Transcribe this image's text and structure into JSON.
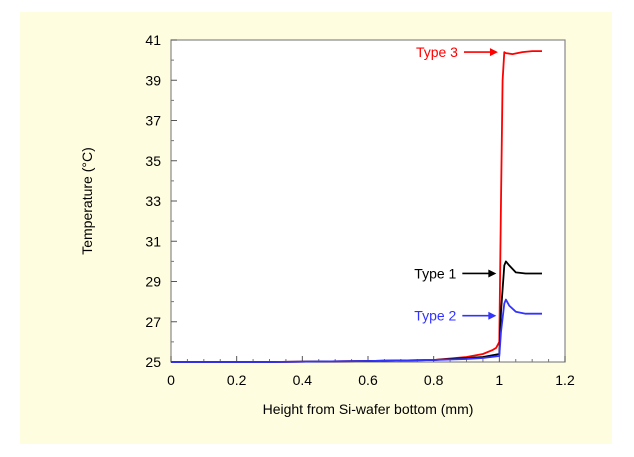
{
  "chart_data": {
    "type": "line",
    "title": "",
    "xlabel": "Height from Si-wafer bottom (mm)",
    "ylabel": "Temperature (°C)",
    "xlim": [
      0,
      1.2
    ],
    "ylim": [
      25,
      41
    ],
    "xticks": [
      0,
      0.2,
      0.4,
      0.6,
      0.8,
      1,
      1.2
    ],
    "yticks": [
      25,
      27,
      29,
      31,
      33,
      35,
      37,
      39,
      41
    ],
    "grid": false,
    "legend": "inline labels with arrows",
    "series": [
      {
        "name": "Type 3",
        "color": "#ff0000",
        "points": [
          [
            0,
            25.0
          ],
          [
            0.3,
            25.0
          ],
          [
            0.6,
            25.05
          ],
          [
            0.8,
            25.1
          ],
          [
            0.9,
            25.25
          ],
          [
            0.95,
            25.4
          ],
          [
            0.98,
            25.6
          ],
          [
            0.99,
            25.7
          ],
          [
            1.0,
            26.0
          ],
          [
            1.005,
            33.0
          ],
          [
            1.01,
            39.0
          ],
          [
            1.015,
            40.4
          ],
          [
            1.02,
            40.35
          ],
          [
            1.04,
            40.3
          ],
          [
            1.07,
            40.4
          ],
          [
            1.1,
            40.45
          ],
          [
            1.13,
            40.45
          ]
        ]
      },
      {
        "name": "Type 1",
        "color": "#000000",
        "points": [
          [
            0,
            25.0
          ],
          [
            0.3,
            25.0
          ],
          [
            0.6,
            25.05
          ],
          [
            0.8,
            25.1
          ],
          [
            0.9,
            25.2
          ],
          [
            0.95,
            25.25
          ],
          [
            1.0,
            25.4
          ],
          [
            1.005,
            27.5
          ],
          [
            1.015,
            29.8
          ],
          [
            1.02,
            30.0
          ],
          [
            1.03,
            29.8
          ],
          [
            1.05,
            29.45
          ],
          [
            1.08,
            29.4
          ],
          [
            1.13,
            29.4
          ]
        ]
      },
      {
        "name": "Type 2",
        "color": "#3333ff",
        "points": [
          [
            0,
            25.0
          ],
          [
            0.3,
            25.0
          ],
          [
            0.6,
            25.05
          ],
          [
            0.8,
            25.1
          ],
          [
            0.9,
            25.15
          ],
          [
            0.95,
            25.2
          ],
          [
            1.0,
            25.3
          ],
          [
            1.005,
            26.5
          ],
          [
            1.015,
            27.9
          ],
          [
            1.02,
            28.1
          ],
          [
            1.03,
            27.8
          ],
          [
            1.05,
            27.5
          ],
          [
            1.08,
            27.4
          ],
          [
            1.13,
            27.4
          ]
        ]
      }
    ],
    "annotations": [
      {
        "text": "Type 3",
        "color": "#ff0000",
        "arrow_to": [
          1.005,
          40.4
        ]
      },
      {
        "text": "Type 1",
        "color": "#000000",
        "arrow_to": [
          1.0,
          29.4
        ]
      },
      {
        "text": "Type 2",
        "color": "#3333ff",
        "arrow_to": [
          1.0,
          27.3
        ]
      }
    ]
  }
}
